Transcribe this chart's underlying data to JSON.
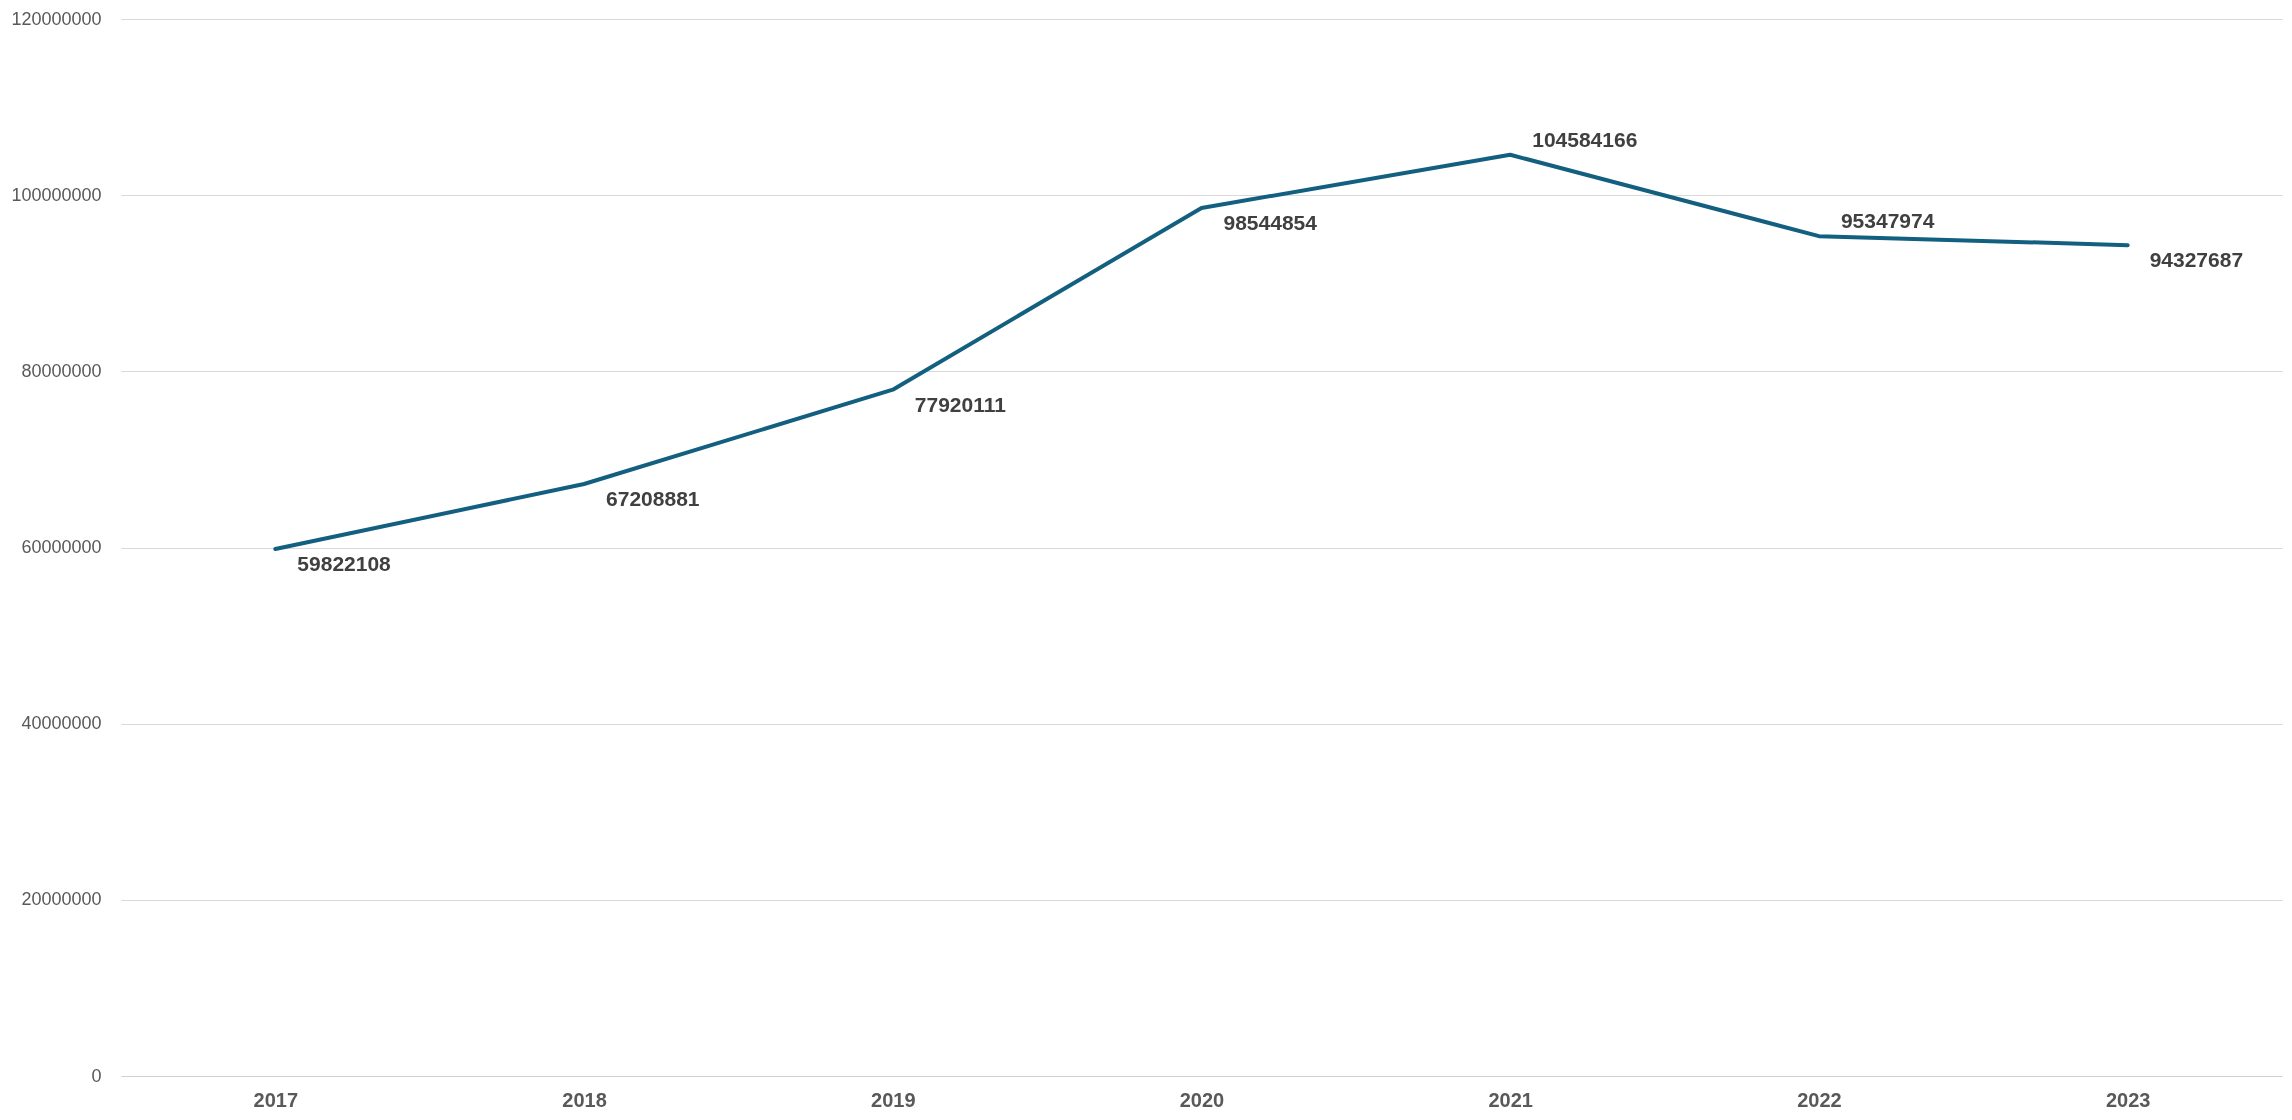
{
  "chart_data": {
    "type": "line",
    "categories": [
      "2017",
      "2018",
      "2019",
      "2020",
      "2021",
      "2022",
      "2023"
    ],
    "series": [
      {
        "color": "#135f7f",
        "values": [
          59822108,
          67208881,
          77920111,
          98544854,
          104584166,
          95347974,
          94327687
        ]
      }
    ],
    "ylim": [
      0,
      120000000
    ],
    "yticks": [
      0,
      20000000,
      40000000,
      60000000,
      80000000,
      100000000,
      120000000
    ],
    "grid": "y",
    "data_labels": true,
    "marker": "none",
    "line_style": "solid"
  }
}
